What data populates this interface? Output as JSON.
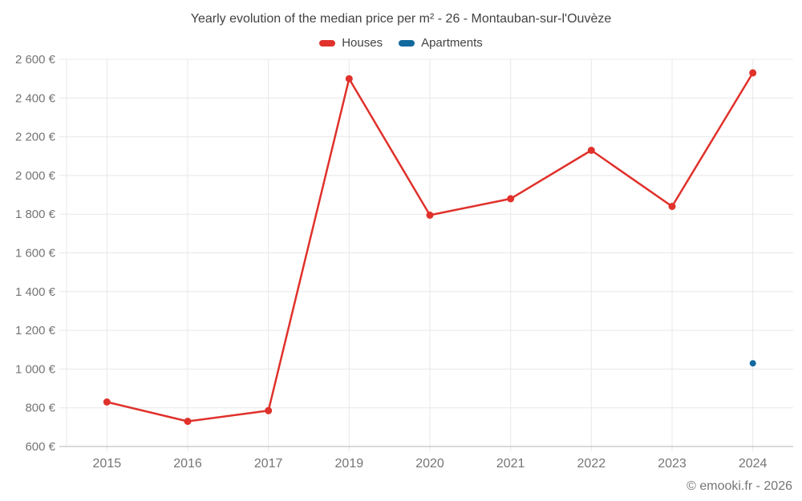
{
  "chart_data": {
    "type": "line",
    "title": "Yearly evolution of the median price per m² - 26 - Montauban-sur-l'Ouvèze",
    "categories": [
      "2015",
      "2016",
      "2017",
      "2019",
      "2020",
      "2021",
      "2022",
      "2023",
      "2024"
    ],
    "series": [
      {
        "name": "Houses",
        "color": "#e0312b",
        "values": [
          830,
          730,
          785,
          2500,
          1795,
          1880,
          2130,
          1840,
          2530
        ]
      },
      {
        "name": "Apartments",
        "color": "#11699e",
        "values": [
          null,
          null,
          null,
          null,
          null,
          null,
          null,
          null,
          1030
        ]
      }
    ],
    "xlabel": "",
    "ylabel": "",
    "ylim": [
      600,
      2600
    ],
    "y_tick_values": [
      600,
      800,
      1000,
      1200,
      1400,
      1600,
      1800,
      2000,
      2200,
      2400,
      2600
    ],
    "y_tick_labels": [
      "600 €",
      "800 €",
      "1 000 €",
      "1 200 €",
      "1 400 €",
      "1 600 €",
      "1 800 €",
      "2 000 €",
      "2 200 €",
      "2 400 €",
      "2 600 €"
    ],
    "grid": true,
    "legend_position": "top",
    "colors": {
      "grid": "#e8e8e8",
      "axis": "#b3b3b3",
      "tick_text": "#757575",
      "title_text": "#424242"
    }
  },
  "footer": {
    "credit": "© emooki.fr - 2026"
  }
}
